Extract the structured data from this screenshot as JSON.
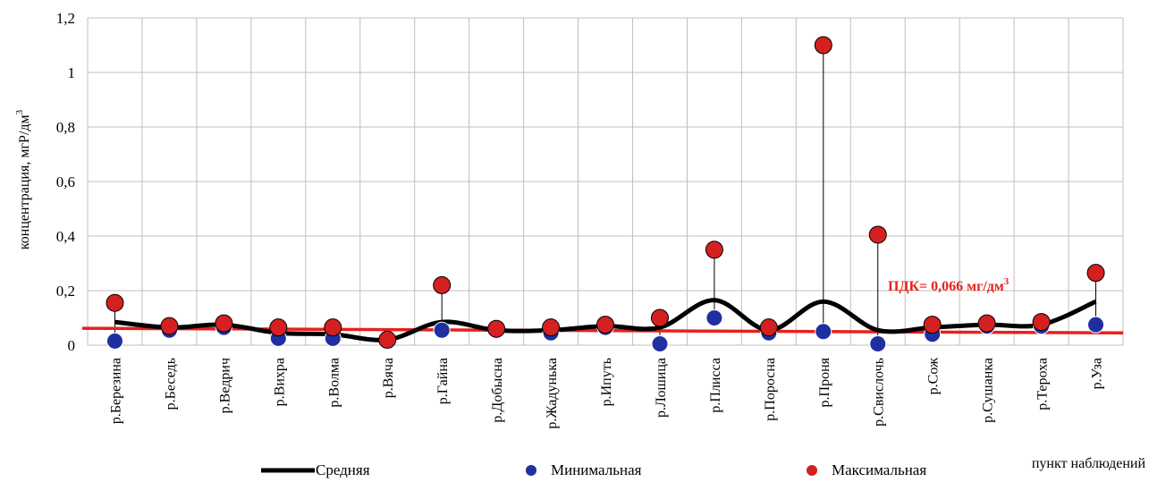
{
  "chart_data": {
    "type": "line",
    "ylabel_main": "концентрация, мгР/дм",
    "ylabel_sup": "3",
    "xlabel": "пункт наблюдений",
    "ylim": [
      0,
      1.2
    ],
    "yticks": [
      "0",
      "0,2",
      "0,4",
      "0,6",
      "0,8",
      "1",
      "1,2"
    ],
    "ytick_values": [
      0,
      0.2,
      0.4,
      0.6,
      0.8,
      1.0,
      1.2
    ],
    "grid": true,
    "categories": [
      "р.Березина",
      "р.Беседь",
      "р.Ведрич",
      "р.Вихра",
      "р.Волма",
      "р.Вячa",
      "р.Гайна",
      "р.Добысна",
      "р.Жадунька",
      "р.Ипуть",
      "р.Лошица",
      "р.Плисса",
      "р.Поросна",
      "р.Проня",
      "р.Свислочь",
      "р.Сож",
      "р.Сушанка",
      "р.Тероха",
      "р.Уза"
    ],
    "series": [
      {
        "name": "Средняя",
        "color": "#000000",
        "values": [
          0.085,
          0.065,
          0.075,
          0.045,
          0.04,
          0.02,
          0.085,
          0.055,
          0.055,
          0.07,
          0.065,
          0.165,
          0.055,
          0.16,
          0.055,
          0.065,
          0.075,
          0.075,
          0.16
        ]
      },
      {
        "name": "Минимальная",
        "color": "#1f2fa0",
        "values": [
          0.015,
          0.055,
          0.065,
          0.025,
          0.025,
          0.02,
          0.055,
          0.055,
          0.045,
          0.065,
          0.005,
          0.1,
          0.045,
          0.05,
          0.005,
          0.04,
          0.07,
          0.07,
          0.075
        ]
      },
      {
        "name": "Максимальная",
        "color": "#d42020",
        "values": [
          0.155,
          0.07,
          0.08,
          0.065,
          0.065,
          0.02,
          0.22,
          0.06,
          0.065,
          0.075,
          0.1,
          0.35,
          0.065,
          1.1,
          0.405,
          0.075,
          0.08,
          0.085,
          0.265
        ]
      }
    ],
    "reference_line": {
      "label": "ПДК= 0,066 мг/дм",
      "label_sup": "3",
      "start_value": 0.062,
      "end_value": 0.045,
      "color": "#e8201c"
    },
    "legend": [
      "Средняя",
      "Минимальная",
      "Максимальная"
    ],
    "legend_position": "bottom"
  }
}
